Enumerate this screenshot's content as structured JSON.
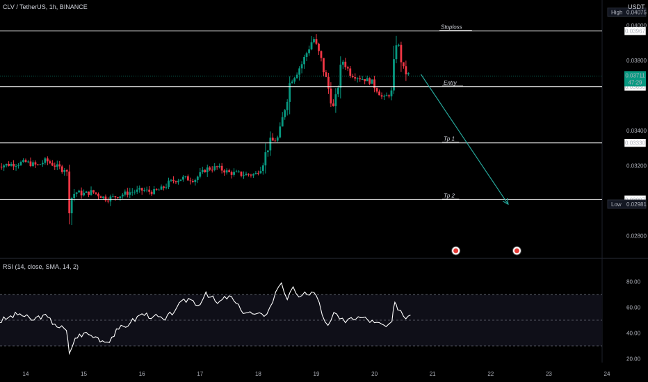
{
  "header": {
    "symbol_title": "CLV / TetherUS, 1h, BINANCE",
    "currency": "USDT"
  },
  "colors": {
    "up": "#089981",
    "down": "#f23645",
    "line": "#ffffff",
    "arrow": "#26a69a",
    "rsi": "#ffffff",
    "bg": "#000000",
    "grid_dash": "#6b6f7a"
  },
  "chart_data": [
    {
      "type": "candlestick",
      "ylim": [
        0.0268,
        0.0412
      ],
      "x_ticks": [
        "14",
        "15",
        "16",
        "17",
        "18",
        "19",
        "20",
        "21",
        "22",
        "23",
        "24"
      ],
      "y_ticks": [
        "0.02800",
        "0.03200",
        "0.03400",
        "0.03650",
        "0.03800",
        "0.04000"
      ],
      "ohlc_path": [
        [
          13.5,
          0.032
        ],
        [
          13.8,
          0.0321
        ],
        [
          14.0,
          0.0322
        ],
        [
          14.2,
          0.032
        ],
        [
          14.35,
          0.0323
        ],
        [
          14.45,
          0.0321
        ],
        [
          14.62,
          0.0318
        ],
        [
          14.7,
          0.0319
        ],
        [
          14.75,
          0.03
        ],
        [
          14.85,
          0.0305
        ],
        [
          15.0,
          0.0304
        ],
        [
          15.15,
          0.0305
        ],
        [
          15.4,
          0.0301
        ],
        [
          15.6,
          0.0303
        ],
        [
          15.8,
          0.0305
        ],
        [
          16.0,
          0.0306
        ],
        [
          16.2,
          0.0305
        ],
        [
          16.35,
          0.0307
        ],
        [
          16.5,
          0.0311
        ],
        [
          16.7,
          0.0313
        ],
        [
          16.9,
          0.0312
        ],
        [
          17.1,
          0.0318
        ],
        [
          17.3,
          0.0319
        ],
        [
          17.5,
          0.0316
        ],
        [
          17.75,
          0.0315
        ],
        [
          17.95,
          0.0315
        ],
        [
          18.05,
          0.032
        ],
        [
          18.2,
          0.0333
        ],
        [
          18.35,
          0.0336
        ],
        [
          18.55,
          0.0368
        ],
        [
          18.75,
          0.0378
        ],
        [
          18.95,
          0.0393
        ],
        [
          19.1,
          0.0378
        ],
        [
          19.3,
          0.0352
        ],
        [
          19.45,
          0.038
        ],
        [
          19.6,
          0.0372
        ],
        [
          19.75,
          0.037
        ],
        [
          19.95,
          0.0368
        ],
        [
          20.15,
          0.0358
        ],
        [
          20.3,
          0.0362
        ],
        [
          20.38,
          0.0394
        ],
        [
          20.5,
          0.0374
        ],
        [
          20.62,
          0.0371
        ]
      ],
      "levels": [
        {
          "name": "Stoploss",
          "price": 0.03967,
          "label": "0.03967"
        },
        {
          "name": "Entry",
          "price": 0.0365,
          "label": "0.03650"
        },
        {
          "name": "Tp 1",
          "price": 0.0333,
          "label": "0.03330"
        },
        {
          "name": "Tp 2",
          "price": 0.03007,
          "label": "0.03007"
        }
      ],
      "current_price": {
        "value": 0.03711,
        "label": "0.03711",
        "countdown": "47:29"
      },
      "high": {
        "label": "High",
        "value": "0.04075"
      },
      "low": {
        "label": "Low",
        "value": "0.02981"
      },
      "projection_arrow": {
        "from": [
          20.8,
          0.0372
        ],
        "to": [
          22.3,
          0.0298
        ]
      },
      "event_markers": [
        21.4,
        22.45
      ]
    },
    {
      "type": "line",
      "title": "RSI (14, close, SMA, 14, 2)",
      "ylim": [
        17,
        96
      ],
      "y_ticks": [
        "80.00",
        "60.00",
        "40.00",
        "20.00"
      ],
      "band": {
        "upper": 70,
        "middle": 50,
        "lower": 30
      },
      "x": [
        13.5,
        13.7,
        13.9,
        14.1,
        14.3,
        14.5,
        14.7,
        14.75,
        14.85,
        15.0,
        15.2,
        15.4,
        15.6,
        15.8,
        16.0,
        16.2,
        16.4,
        16.6,
        16.8,
        17.0,
        17.1,
        17.3,
        17.5,
        17.7,
        17.9,
        18.1,
        18.2,
        18.3,
        18.4,
        18.5,
        18.6,
        18.7,
        18.8,
        19.0,
        19.1,
        19.2,
        19.3,
        19.4,
        19.5,
        19.6,
        19.8,
        20.0,
        20.2,
        20.3,
        20.35,
        20.4,
        20.5,
        20.62
      ],
      "values": [
        48,
        52,
        55,
        50,
        54,
        47,
        42,
        24,
        36,
        40,
        37,
        33,
        43,
        48,
        55,
        53,
        50,
        60,
        67,
        62,
        72,
        63,
        69,
        58,
        55,
        53,
        60,
        72,
        79,
        66,
        76,
        68,
        72,
        69,
        54,
        46,
        56,
        51,
        48,
        52,
        52,
        48,
        45,
        49,
        64,
        58,
        53,
        54
      ]
    }
  ]
}
